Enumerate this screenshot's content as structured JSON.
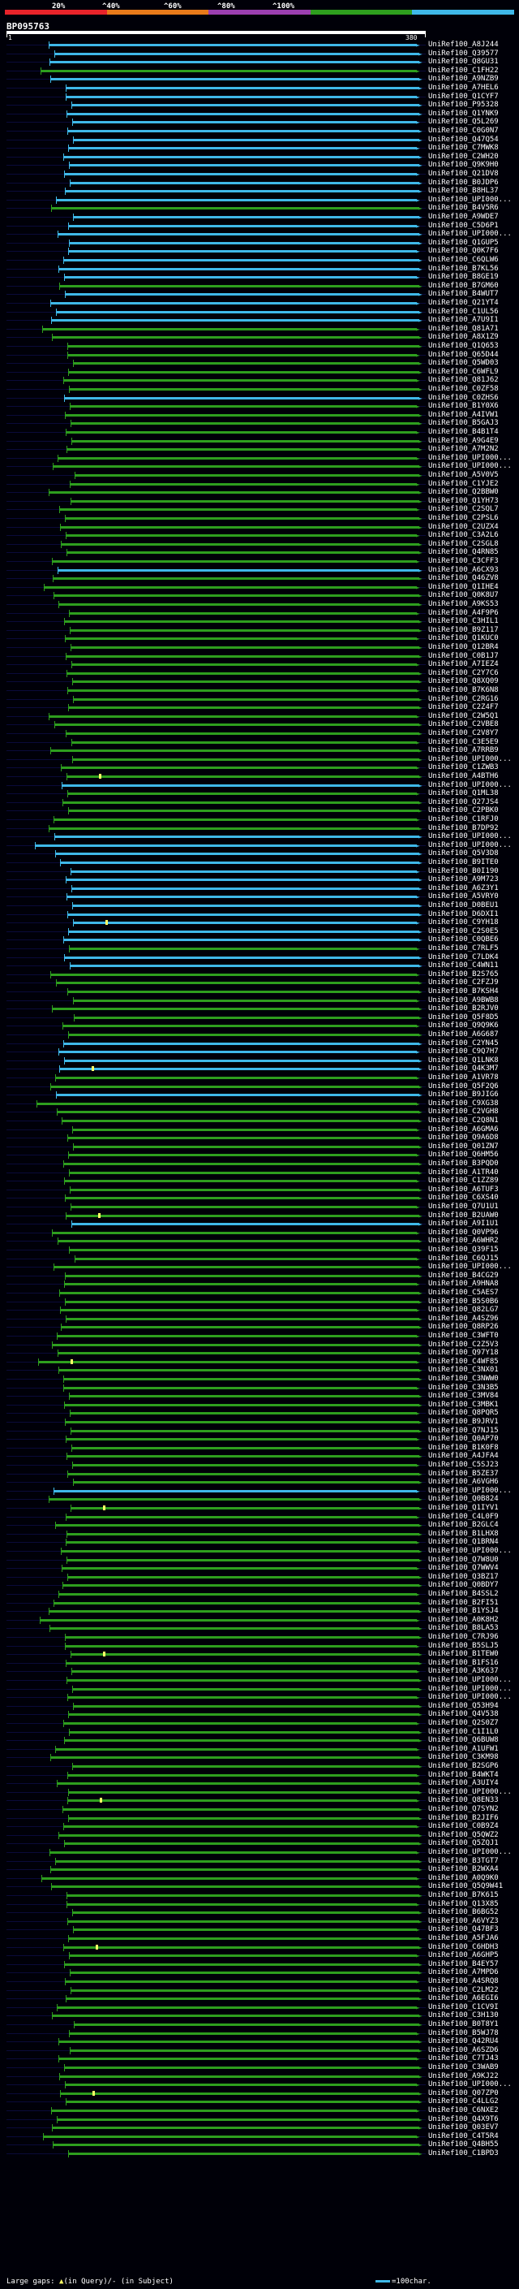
{
  "header": {
    "query_id": "BP095763",
    "start": "1",
    "end": "380",
    "identity_scale": [
      "20%",
      "^40%",
      "^60%",
      "^80%",
      "^100%"
    ],
    "scale_colors": [
      "#e8232a",
      "#e87a1a",
      "#9b3fb0",
      "#2e9e1e",
      "#3fb8e8"
    ]
  },
  "hits": [
    {
      "id": "UniRef100_A8J244",
      "color": "cyan"
    },
    {
      "id": "UniRef100_Q39577",
      "color": "cyan"
    },
    {
      "id": "UniRef100_Q8GU31",
      "color": "cyan"
    },
    {
      "id": "UniRef100_C1FH22",
      "color": "green"
    },
    {
      "id": "UniRef100_A9NZB9",
      "color": "cyan"
    },
    {
      "id": "UniRef100_A7HEL6",
      "color": "cyan"
    },
    {
      "id": "UniRef100_Q1CYF7",
      "color": "cyan"
    },
    {
      "id": "UniRef100_P95328",
      "color": "cyan"
    },
    {
      "id": "UniRef100_Q1YNK9",
      "color": "cyan"
    },
    {
      "id": "UniRef100_Q5L269",
      "color": "cyan"
    },
    {
      "id": "UniRef100_C0G0N7",
      "color": "cyan"
    },
    {
      "id": "UniRef100_Q47Q54",
      "color": "cyan"
    },
    {
      "id": "UniRef100_C7MWK8",
      "color": "cyan"
    },
    {
      "id": "UniRef100_C2WH20",
      "color": "cyan"
    },
    {
      "id": "UniRef100_Q9K9H0",
      "color": "cyan"
    },
    {
      "id": "UniRef100_Q21DV8",
      "color": "cyan"
    },
    {
      "id": "UniRef100_B0JDP6",
      "color": "cyan"
    },
    {
      "id": "UniRef100_B8HL37",
      "color": "cyan"
    },
    {
      "id": "UniRef100_UPI000...",
      "color": "cyan"
    },
    {
      "id": "UniRef100_B4V5R6",
      "color": "green"
    },
    {
      "id": "UniRef100_A9WDE7",
      "color": "cyan"
    },
    {
      "id": "UniRef100_C5D6P1",
      "color": "cyan"
    },
    {
      "id": "UniRef100_UPI000...",
      "color": "cyan"
    },
    {
      "id": "UniRef100_Q1GUP5",
      "color": "cyan"
    },
    {
      "id": "UniRef100_Q0K7F6",
      "color": "cyan"
    },
    {
      "id": "UniRef100_C6QLW6",
      "color": "cyan"
    },
    {
      "id": "UniRef100_B7KL56",
      "color": "cyan"
    },
    {
      "id": "UniRef100_B8GE19",
      "color": "cyan"
    },
    {
      "id": "UniRef100_B7GM60",
      "color": "green"
    },
    {
      "id": "UniRef100_B4WUT7",
      "color": "cyan"
    },
    {
      "id": "UniRef100_Q21YT4",
      "color": "cyan"
    },
    {
      "id": "UniRef100_C1UL56",
      "color": "cyan"
    },
    {
      "id": "UniRef100_A7U9I1",
      "color": "cyan"
    },
    {
      "id": "UniRef100_Q81A71",
      "color": "green"
    },
    {
      "id": "UniRef100_A8X1Z9",
      "color": "green"
    },
    {
      "id": "UniRef100_Q1Q653",
      "color": "green"
    },
    {
      "id": "UniRef100_Q65D44",
      "color": "green"
    },
    {
      "id": "UniRef100_Q5WD03",
      "color": "green"
    },
    {
      "id": "UniRef100_C6WFL9",
      "color": "green"
    },
    {
      "id": "UniRef100_Q81J62",
      "color": "green"
    },
    {
      "id": "UniRef100_C0ZF58",
      "color": "green"
    },
    {
      "id": "UniRef100_C0ZHS6",
      "color": "cyan"
    },
    {
      "id": "UniRef100_B1Y0X6",
      "color": "green"
    },
    {
      "id": "UniRef100_A4IVW1",
      "color": "green"
    },
    {
      "id": "UniRef100_B5GAJ3",
      "color": "green"
    },
    {
      "id": "UniRef100_B4B1T4",
      "color": "green"
    },
    {
      "id": "UniRef100_A9G4E9",
      "color": "green"
    },
    {
      "id": "UniRef100_A7M2N2",
      "color": "green"
    },
    {
      "id": "UniRef100_UPI000...",
      "color": "green"
    },
    {
      "id": "UniRef100_UPI000...",
      "color": "green"
    },
    {
      "id": "UniRef100_A5V0V5",
      "color": "green"
    },
    {
      "id": "UniRef100_C1YJE2",
      "color": "green"
    },
    {
      "id": "UniRef100_Q2BBW0",
      "color": "green"
    },
    {
      "id": "UniRef100_Q1YH73",
      "color": "green"
    },
    {
      "id": "UniRef100_C2SQL7",
      "color": "green"
    },
    {
      "id": "UniRef100_C2PSL6",
      "color": "green"
    },
    {
      "id": "UniRef100_C2UZX4",
      "color": "green"
    },
    {
      "id": "UniRef100_C3A2L6",
      "color": "green"
    },
    {
      "id": "UniRef100_C2SGL8",
      "color": "green"
    },
    {
      "id": "UniRef100_Q4RN85",
      "color": "green"
    },
    {
      "id": "UniRef100_C3CFF3",
      "color": "green"
    },
    {
      "id": "UniRef100_A6CX93",
      "color": "cyan"
    },
    {
      "id": "UniRef100_Q46ZV8",
      "color": "green"
    },
    {
      "id": "UniRef100_Q1IHE4",
      "color": "green"
    },
    {
      "id": "UniRef100_Q0K8U7",
      "color": "green"
    },
    {
      "id": "UniRef100_A9KS53",
      "color": "green"
    },
    {
      "id": "UniRef100_A4F9P6",
      "color": "green"
    },
    {
      "id": "UniRef100_C3HIL1",
      "color": "green"
    },
    {
      "id": "UniRef100_B9Z117",
      "color": "green"
    },
    {
      "id": "UniRef100_Q1KUC0",
      "color": "green"
    },
    {
      "id": "UniRef100_Q12BR4",
      "color": "green"
    },
    {
      "id": "UniRef100_C0B1J7",
      "color": "green"
    },
    {
      "id": "UniRef100_A7IEZ4",
      "color": "green"
    },
    {
      "id": "UniRef100_C2Y7C6",
      "color": "green"
    },
    {
      "id": "UniRef100_Q8XQ09",
      "color": "green"
    },
    {
      "id": "UniRef100_B7K6N8",
      "color": "green"
    },
    {
      "id": "UniRef100_C2RG16",
      "color": "green"
    },
    {
      "id": "UniRef100_C2Z4F7",
      "color": "green"
    },
    {
      "id": "UniRef100_C2W5Q1",
      "color": "green"
    },
    {
      "id": "UniRef100_C2VBE8",
      "color": "green"
    },
    {
      "id": "UniRef100_C2V8Y7",
      "color": "green"
    },
    {
      "id": "UniRef100_C3E5E9",
      "color": "green"
    },
    {
      "id": "UniRef100_A7RRB9",
      "color": "green"
    },
    {
      "id": "UniRef100_UPI000...",
      "color": "green"
    },
    {
      "id": "UniRef100_C1ZWB3",
      "color": "green"
    },
    {
      "id": "UniRef100_A4BTH6",
      "color": "green"
    },
    {
      "id": "UniRef100_UPI000...",
      "color": "cyan"
    },
    {
      "id": "UniRef100_Q1ML38",
      "color": "green"
    },
    {
      "id": "UniRef100_Q27JS4",
      "color": "green"
    },
    {
      "id": "UniRef100_C2PBK0",
      "color": "green"
    },
    {
      "id": "UniRef100_C1RFJ0",
      "color": "green"
    },
    {
      "id": "UniRef100_B7DP92",
      "color": "green"
    },
    {
      "id": "UniRef100_UPI000...",
      "color": "cyan"
    },
    {
      "id": "UniRef100_UPI000...",
      "color": "cyan"
    },
    {
      "id": "UniRef100_Q5V3D8",
      "color": "cyan"
    },
    {
      "id": "UniRef100_B9ITE0",
      "color": "cyan"
    },
    {
      "id": "UniRef100_B0I190",
      "color": "cyan"
    },
    {
      "id": "UniRef100_A9M723",
      "color": "cyan"
    },
    {
      "id": "UniRef100_A6Z3Y1",
      "color": "cyan"
    },
    {
      "id": "UniRef100_A5VRY0",
      "color": "cyan"
    },
    {
      "id": "UniRef100_D0BEU1",
      "color": "cyan"
    },
    {
      "id": "UniRef100_D6DXI1",
      "color": "cyan"
    },
    {
      "id": "UniRef100_C9YH18",
      "color": "cyan"
    },
    {
      "id": "UniRef100_C2S0E5",
      "color": "cyan"
    },
    {
      "id": "UniRef100_C0QBE6",
      "color": "cyan"
    },
    {
      "id": "UniRef100_C7RLF5",
      "color": "green"
    },
    {
      "id": "UniRef100_C7LDK4",
      "color": "cyan"
    },
    {
      "id": "UniRef100_C4WN11",
      "color": "cyan"
    },
    {
      "id": "UniRef100_B2S765",
      "color": "green"
    },
    {
      "id": "UniRef100_C2FZJ9",
      "color": "green"
    },
    {
      "id": "UniRef100_B7KSH4",
      "color": "green"
    },
    {
      "id": "UniRef100_A9BWB8",
      "color": "green"
    },
    {
      "id": "UniRef100_B2RJV0",
      "color": "green"
    },
    {
      "id": "UniRef100_Q5F8D5",
      "color": "green"
    },
    {
      "id": "UniRef100_Q9Q9K6",
      "color": "green"
    },
    {
      "id": "UniRef100_A6G687",
      "color": "green"
    },
    {
      "id": "UniRef100_C2YN45",
      "color": "cyan"
    },
    {
      "id": "UniRef100_C9Q7H7",
      "color": "cyan"
    },
    {
      "id": "UniRef100_Q1LNK8",
      "color": "cyan"
    },
    {
      "id": "UniRef100_Q4K3M7",
      "color": "cyan"
    },
    {
      "id": "UniRef100_A1VR78",
      "color": "green"
    },
    {
      "id": "UniRef100_Q5F2Q6",
      "color": "green"
    },
    {
      "id": "UniRef100_B9JIG6",
      "color": "cyan"
    },
    {
      "id": "UniRef100_C9XG38",
      "color": "green"
    },
    {
      "id": "UniRef100_C2VGH8",
      "color": "green"
    },
    {
      "id": "UniRef100_C2Q8N1",
      "color": "green"
    },
    {
      "id": "UniRef100_A6GMA6",
      "color": "green"
    },
    {
      "id": "UniRef100_Q9A6D8",
      "color": "green"
    },
    {
      "id": "UniRef100_Q01ZN7",
      "color": "green"
    },
    {
      "id": "UniRef100_Q6HM56",
      "color": "green"
    },
    {
      "id": "UniRef100_B3PQD0",
      "color": "green"
    },
    {
      "id": "UniRef100_A1TR40",
      "color": "green"
    },
    {
      "id": "UniRef100_C1ZZ89",
      "color": "green"
    },
    {
      "id": "UniRef100_A6TUF3",
      "color": "green"
    },
    {
      "id": "UniRef100_C6XS40",
      "color": "green"
    },
    {
      "id": "UniRef100_Q7U1U1",
      "color": "green"
    },
    {
      "id": "UniRef100_B2UAW0",
      "color": "green"
    },
    {
      "id": "UniRef100_A9I1U1",
      "color": "cyan"
    },
    {
      "id": "UniRef100_Q0VP96",
      "color": "green"
    },
    {
      "id": "UniRef100_A6WHR2",
      "color": "green"
    },
    {
      "id": "UniRef100_Q39F15",
      "color": "green"
    },
    {
      "id": "UniRef100_C6QJ15",
      "color": "green"
    },
    {
      "id": "UniRef100_UPI000...",
      "color": "green"
    },
    {
      "id": "UniRef100_B4CG29",
      "color": "green"
    },
    {
      "id": "UniRef100_A9HNA8",
      "color": "green"
    },
    {
      "id": "UniRef100_C5AES7",
      "color": "green"
    },
    {
      "id": "UniRef100_B5S0B6",
      "color": "green"
    },
    {
      "id": "UniRef100_Q82LG7",
      "color": "green"
    },
    {
      "id": "UniRef100_A4SZ96",
      "color": "green"
    },
    {
      "id": "UniRef100_Q8RP26",
      "color": "green"
    },
    {
      "id": "UniRef100_C3WFT0",
      "color": "green"
    },
    {
      "id": "UniRef100_C2Z5V3",
      "color": "green"
    },
    {
      "id": "UniRef100_Q97Y18",
      "color": "green"
    },
    {
      "id": "UniRef100_C4WF85",
      "color": "green"
    },
    {
      "id": "UniRef100_C3NX01",
      "color": "green"
    },
    {
      "id": "UniRef100_C3NWW0",
      "color": "green"
    },
    {
      "id": "UniRef100_C3N3B5",
      "color": "green"
    },
    {
      "id": "UniRef100_C3MV84",
      "color": "green"
    },
    {
      "id": "UniRef100_C3MBK1",
      "color": "green"
    },
    {
      "id": "UniRef100_Q8PQR5",
      "color": "green"
    },
    {
      "id": "UniRef100_B9JRV1",
      "color": "green"
    },
    {
      "id": "UniRef100_Q7NJ15",
      "color": "green"
    },
    {
      "id": "UniRef100_Q0AP70",
      "color": "green"
    },
    {
      "id": "UniRef100_B1K0F8",
      "color": "green"
    },
    {
      "id": "UniRef100_A4JFA4",
      "color": "green"
    },
    {
      "id": "UniRef100_C5SJ23",
      "color": "green"
    },
    {
      "id": "UniRef100_B5ZE37",
      "color": "green"
    },
    {
      "id": "UniRef100_A6VGH6",
      "color": "green"
    },
    {
      "id": "UniRef100_UPI000...",
      "color": "cyan"
    },
    {
      "id": "UniRef100_Q0B824",
      "color": "green"
    },
    {
      "id": "UniRef100_Q1IYV1",
      "color": "green"
    },
    {
      "id": "UniRef100_C4L0F9",
      "color": "green"
    },
    {
      "id": "UniRef100_B2GLC4",
      "color": "green"
    },
    {
      "id": "UniRef100_B1LHX8",
      "color": "green"
    },
    {
      "id": "UniRef100_Q1BRN4",
      "color": "green"
    },
    {
      "id": "UniRef100_UPI000...",
      "color": "green"
    },
    {
      "id": "UniRef100_Q7W8U0",
      "color": "green"
    },
    {
      "id": "UniRef100_Q7WWV4",
      "color": "green"
    },
    {
      "id": "UniRef100_Q3BZ17",
      "color": "green"
    },
    {
      "id": "UniRef100_Q0BDY7",
      "color": "green"
    },
    {
      "id": "UniRef100_B4SSL2",
      "color": "green"
    },
    {
      "id": "UniRef100_B2FI51",
      "color": "green"
    },
    {
      "id": "UniRef100_B1YSJ4",
      "color": "green"
    },
    {
      "id": "UniRef100_A0K8H2",
      "color": "green"
    },
    {
      "id": "UniRef100_B8LA53",
      "color": "green"
    },
    {
      "id": "UniRef100_C7RJ96",
      "color": "green"
    },
    {
      "id": "UniRef100_B5SLJ5",
      "color": "green"
    },
    {
      "id": "UniRef100_B1TEW0",
      "color": "green"
    },
    {
      "id": "UniRef100_B1FS16",
      "color": "green"
    },
    {
      "id": "UniRef100_A3K637",
      "color": "green"
    },
    {
      "id": "UniRef100_UPI000...",
      "color": "green"
    },
    {
      "id": "UniRef100_UPI000...",
      "color": "green"
    },
    {
      "id": "UniRef100_UPI000...",
      "color": "green"
    },
    {
      "id": "UniRef100_Q53H94",
      "color": "green"
    },
    {
      "id": "UniRef100_Q4V538",
      "color": "green"
    },
    {
      "id": "UniRef100_Q2S0Z7",
      "color": "green"
    },
    {
      "id": "UniRef100_C1I1L0",
      "color": "green"
    },
    {
      "id": "UniRef100_Q6BUW8",
      "color": "green"
    },
    {
      "id": "UniRef100_A1UFW1",
      "color": "green"
    },
    {
      "id": "UniRef100_C3KM98",
      "color": "green"
    },
    {
      "id": "UniRef100_B2SGP6",
      "color": "green"
    },
    {
      "id": "UniRef100_B4WKT4",
      "color": "green"
    },
    {
      "id": "UniRef100_A3UIY4",
      "color": "green"
    },
    {
      "id": "UniRef100_UPI000...",
      "color": "green"
    },
    {
      "id": "UniRef100_Q8EN33",
      "color": "green"
    },
    {
      "id": "UniRef100_Q7SYN2",
      "color": "green"
    },
    {
      "id": "UniRef100_B2JIF6",
      "color": "green"
    },
    {
      "id": "UniRef100_C0B9Z4",
      "color": "green"
    },
    {
      "id": "UniRef100_Q5QWZ2",
      "color": "green"
    },
    {
      "id": "UniRef100_Q5ZQJ1",
      "color": "green"
    },
    {
      "id": "UniRef100_UPI000...",
      "color": "green"
    },
    {
      "id": "UniRef100_B3TGT7",
      "color": "green"
    },
    {
      "id": "UniRef100_B2WXA4",
      "color": "green"
    },
    {
      "id": "UniRef100_A0Q9K0",
      "color": "green"
    },
    {
      "id": "UniRef100_Q5Q9W41",
      "color": "green"
    },
    {
      "id": "UniRef100_B7K615",
      "color": "green"
    },
    {
      "id": "UniRef100_Q13X85",
      "color": "green"
    },
    {
      "id": "UniRef100_B6BG52",
      "color": "green"
    },
    {
      "id": "UniRef100_A6VYZ3",
      "color": "green"
    },
    {
      "id": "UniRef100_Q47BF3",
      "color": "green"
    },
    {
      "id": "UniRef100_A5FJA6",
      "color": "green"
    },
    {
      "id": "UniRef100_C6HDH3",
      "color": "green"
    },
    {
      "id": "UniRef100_A6GHP5",
      "color": "green"
    },
    {
      "id": "UniRef100_B4EY57",
      "color": "green"
    },
    {
      "id": "UniRef100_A7MPD6",
      "color": "green"
    },
    {
      "id": "UniRef100_A4SRQ8",
      "color": "green"
    },
    {
      "id": "UniRef100_C2LM22",
      "color": "green"
    },
    {
      "id": "UniRef100_A6EGI6",
      "color": "green"
    },
    {
      "id": "UniRef100_C1CV9I",
      "color": "green"
    },
    {
      "id": "UniRef100_C3H130",
      "color": "green"
    },
    {
      "id": "UniRef100_B0T8Y1",
      "color": "green"
    },
    {
      "id": "UniRef100_B5WJ78",
      "color": "green"
    },
    {
      "id": "UniRef100_Q42RU4",
      "color": "green"
    },
    {
      "id": "UniRef100_A6SZD6",
      "color": "green"
    },
    {
      "id": "UniRef100_C7TJ43",
      "color": "green"
    },
    {
      "id": "UniRef100_C3WAB9",
      "color": "green"
    },
    {
      "id": "UniRef100_A9KJ22",
      "color": "green"
    },
    {
      "id": "UniRef100_UPI000...",
      "color": "green"
    },
    {
      "id": "UniRef100_Q07ZP0",
      "color": "green"
    },
    {
      "id": "UniRef100_C4LLG2",
      "color": "green"
    },
    {
      "id": "UniRef100_C6NXE2",
      "color": "green"
    },
    {
      "id": "UniRef100_Q4X9T6",
      "color": "green"
    },
    {
      "id": "UniRef100_Q03EV7",
      "color": "green"
    },
    {
      "id": "UniRef100_C4T5R4",
      "color": "green"
    },
    {
      "id": "UniRef100_Q4BH55",
      "color": "green"
    },
    {
      "id": "UniRef100_C1BPD3",
      "color": "green"
    }
  ],
  "footer": {
    "large_gaps_label": "Large gaps:",
    "gap_query_text": "(in Query)",
    "gap_subject_text": "/- (in Subject)",
    "scale_text": "=100char."
  }
}
